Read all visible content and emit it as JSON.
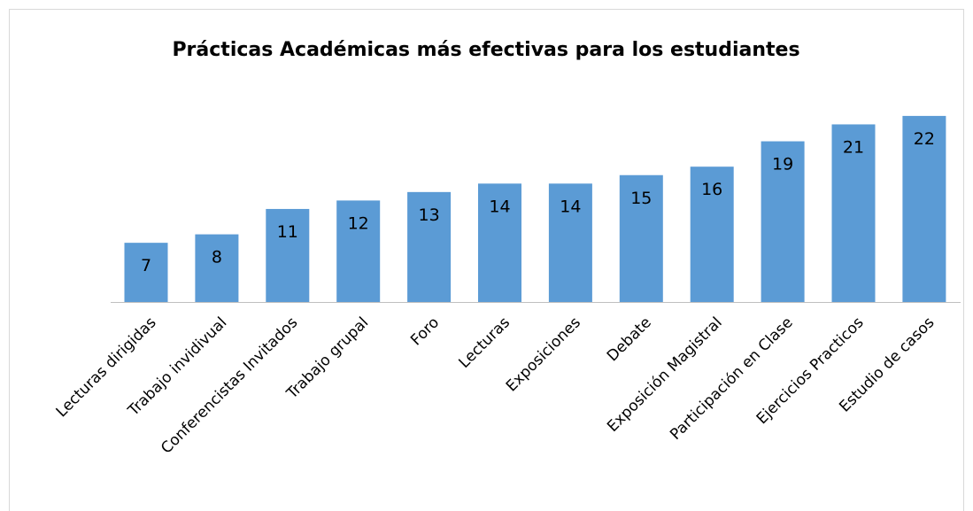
{
  "chart_data": {
    "type": "bar",
    "title": "Prácticas Académicas más efectivas para los estudiantes",
    "categories": [
      "Lecturas dirigidas",
      "Trabajo invidivual",
      "Conferencistas Invitados",
      "Trabajo grupal",
      "Foro",
      "Lecturas",
      "Exposiciones",
      "Debate",
      "Exposición Magistral",
      "Participación en Clase",
      "Ejercicios Practicos",
      "Estudio de casos"
    ],
    "values": [
      7,
      8,
      11,
      12,
      13,
      14,
      14,
      15,
      16,
      19,
      21,
      22
    ],
    "color": "#5b9bd5",
    "data_labels": true
  }
}
